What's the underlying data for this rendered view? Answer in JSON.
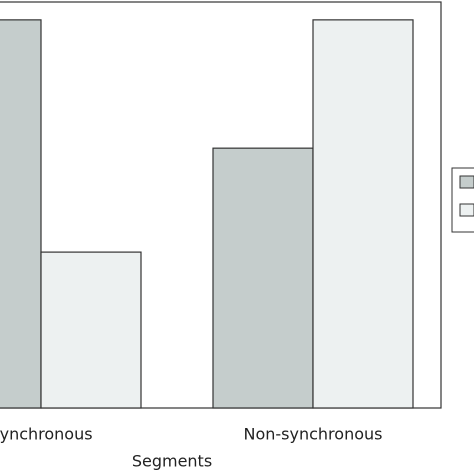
{
  "chart_data": {
    "type": "bar",
    "x_label": "Segments",
    "categories": [
      "Synchronous",
      "Non-synchronous"
    ],
    "series": [
      {
        "color": "#c5cdcc",
        "values": [
          95.6,
          64.0
        ]
      },
      {
        "color": "#edf1f1",
        "values": [
          38.4,
          95.6
        ]
      }
    ],
    "ylim": [
      0,
      100
    ],
    "legend": "right"
  }
}
